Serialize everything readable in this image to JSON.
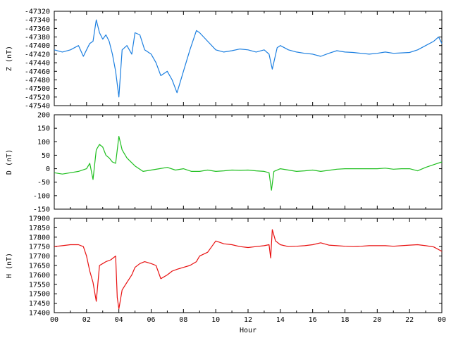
{
  "chart_data": [
    {
      "type": "line",
      "title": "",
      "xlabel": "",
      "ylabel": "Z (nT)",
      "color": "#1c7fe0",
      "xlim": [
        0,
        24
      ],
      "ylim": [
        -47540,
        -47320
      ],
      "yticks": [
        "-47320",
        "-47340",
        "-47360",
        "-47380",
        "-47400",
        "-47420",
        "-47440",
        "-47460",
        "-47480",
        "-47500",
        "-47520",
        "-47540"
      ],
      "x": [
        0,
        0.5,
        1,
        1.5,
        1.8,
        2,
        2.2,
        2.4,
        2.6,
        2.8,
        3,
        3.2,
        3.4,
        3.6,
        3.8,
        4,
        4.2,
        4.5,
        4.8,
        5,
        5.3,
        5.6,
        6,
        6.3,
        6.6,
        7,
        7.3,
        7.6,
        8,
        8.4,
        8.8,
        9,
        9.5,
        10,
        10.5,
        11,
        11.5,
        12,
        12.5,
        13,
        13.3,
        13.5,
        13.8,
        14,
        14.5,
        15,
        15.5,
        16,
        16.5,
        17,
        17.5,
        18,
        18.5,
        19,
        19.5,
        20,
        20.5,
        21,
        21.5,
        22,
        22.5,
        23,
        23.5,
        23.8,
        24
      ],
      "y": [
        -47410,
        -47415,
        -47410,
        -47400,
        -47425,
        -47410,
        -47395,
        -47390,
        -47340,
        -47370,
        -47385,
        -47375,
        -47390,
        -47420,
        -47460,
        -47520,
        -47410,
        -47400,
        -47420,
        -47370,
        -47375,
        -47410,
        -47420,
        -47440,
        -47470,
        -47460,
        -47480,
        -47510,
        -47460,
        -47410,
        -47365,
        -47370,
        -47390,
        -47410,
        -47415,
        -47412,
        -47408,
        -47410,
        -47415,
        -47410,
        -47420,
        -47455,
        -47405,
        -47400,
        -47410,
        -47415,
        -47418,
        -47420,
        -47425,
        -47418,
        -47412,
        -47415,
        -47416,
        -47418,
        -47420,
        -47418,
        -47415,
        -47418,
        -47417,
        -47416,
        -47410,
        -47400,
        -47390,
        -47380,
        -47395
      ]
    },
    {
      "type": "line",
      "title": "",
      "xlabel": "",
      "ylabel": "D (nT)",
      "color": "#1fbf1f",
      "xlim": [
        0,
        24
      ],
      "ylim": [
        -150,
        200
      ],
      "yticks": [
        "200",
        "150",
        "100",
        "50",
        "0",
        "-50",
        "-100",
        "-150"
      ],
      "x": [
        0,
        0.5,
        1,
        1.5,
        2,
        2.2,
        2.4,
        2.6,
        2.8,
        3,
        3.2,
        3.4,
        3.6,
        3.8,
        4,
        4.2,
        4.5,
        5,
        5.5,
        6,
        6.5,
        7,
        7.5,
        8,
        8.5,
        9,
        9.5,
        10,
        10.5,
        11,
        11.5,
        12,
        12.5,
        13,
        13.3,
        13.45,
        13.6,
        14,
        14.5,
        15,
        15.5,
        16,
        16.5,
        17,
        17.5,
        18,
        18.5,
        19,
        19.5,
        20,
        20.5,
        21,
        21.5,
        22,
        22.5,
        23,
        23.5,
        24
      ],
      "y": [
        -15,
        -20,
        -15,
        -10,
        0,
        20,
        -40,
        70,
        90,
        80,
        50,
        40,
        25,
        20,
        120,
        70,
        40,
        10,
        -10,
        -5,
        0,
        5,
        -5,
        0,
        -10,
        -10,
        -5,
        -10,
        -8,
        -5,
        -6,
        -5,
        -8,
        -10,
        -15,
        -80,
        -10,
        0,
        -5,
        -10,
        -8,
        -5,
        -10,
        -6,
        -2,
        0,
        0,
        0,
        0,
        0,
        2,
        -2,
        0,
        0,
        -8,
        5,
        15,
        25
      ]
    },
    {
      "type": "line",
      "title": "",
      "xlabel": "Hour",
      "ylabel": "H (nT)",
      "color": "#e81010",
      "xlim": [
        0,
        24
      ],
      "ylim": [
        17400,
        17900
      ],
      "xticks": [
        "00",
        "02",
        "04",
        "06",
        "08",
        "10",
        "12",
        "14",
        "16",
        "18",
        "20",
        "22",
        "00"
      ],
      "yticks": [
        "17900",
        "17850",
        "17800",
        "17750",
        "17700",
        "17650",
        "17600",
        "17550",
        "17500",
        "17450",
        "17400"
      ],
      "x": [
        0,
        0.5,
        1,
        1.5,
        1.8,
        2,
        2.2,
        2.4,
        2.6,
        2.8,
        3,
        3.2,
        3.5,
        3.8,
        3.9,
        4,
        4.2,
        4.5,
        4.8,
        5,
        5.3,
        5.6,
        6,
        6.3,
        6.6,
        7,
        7.3,
        7.6,
        8,
        8.4,
        8.8,
        9,
        9.5,
        10,
        10.5,
        11,
        11.5,
        12,
        12.5,
        13,
        13.3,
        13.4,
        13.5,
        13.7,
        14,
        14.5,
        15,
        15.5,
        16,
        16.5,
        17,
        17.5,
        18,
        18.5,
        19,
        19.5,
        20,
        20.5,
        21,
        21.5,
        22,
        22.5,
        23,
        23.5,
        24
      ],
      "y": [
        17750,
        17755,
        17760,
        17760,
        17750,
        17700,
        17620,
        17560,
        17460,
        17650,
        17660,
        17670,
        17680,
        17700,
        17480,
        17420,
        17520,
        17560,
        17600,
        17640,
        17660,
        17670,
        17660,
        17650,
        17580,
        17600,
        17620,
        17630,
        17640,
        17650,
        17670,
        17700,
        17720,
        17780,
        17765,
        17760,
        17750,
        17745,
        17750,
        17755,
        17760,
        17690,
        17840,
        17780,
        17760,
        17750,
        17752,
        17755,
        17760,
        17770,
        17758,
        17755,
        17752,
        17750,
        17752,
        17755,
        17755,
        17755,
        17752,
        17755,
        17758,
        17760,
        17755,
        17748,
        17725
      ]
    }
  ]
}
